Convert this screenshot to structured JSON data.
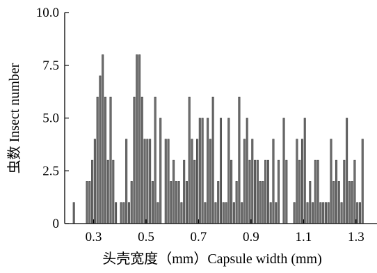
{
  "chart_data": {
    "type": "bar",
    "title": "",
    "xlabel": "头壳宽度（mm）Capsule width (mm)",
    "ylabel": "虫数 Insect number",
    "xlim": [
      0.19,
      1.38
    ],
    "ylim": [
      0,
      10
    ],
    "x_ticks": [
      "0.3",
      "0.5",
      "0.7",
      "0.9",
      "1.1",
      "1.3"
    ],
    "x_tick_values": [
      0.3,
      0.5,
      0.7,
      0.9,
      1.1,
      1.3
    ],
    "y_ticks": [
      "0",
      "2.5",
      "5.0",
      "7.5",
      "10.0"
    ],
    "y_tick_values": [
      0,
      2.5,
      5,
      7.5,
      10
    ],
    "bar_color": "#6e6e6e",
    "bar_width": 0.0065,
    "grid": false,
    "legend": "none",
    "x": [
      0.225,
      0.265,
      0.275,
      0.285,
      0.295,
      0.305,
      0.315,
      0.325,
      0.335,
      0.345,
      0.355,
      0.365,
      0.375,
      0.385,
      0.405,
      0.415,
      0.425,
      0.435,
      0.445,
      0.455,
      0.465,
      0.475,
      0.485,
      0.495,
      0.505,
      0.515,
      0.525,
      0.535,
      0.545,
      0.555,
      0.575,
      0.585,
      0.595,
      0.605,
      0.615,
      0.625,
      0.635,
      0.645,
      0.655,
      0.665,
      0.675,
      0.685,
      0.695,
      0.705,
      0.715,
      0.725,
      0.735,
      0.745,
      0.755,
      0.765,
      0.775,
      0.785,
      0.795,
      0.805,
      0.815,
      0.825,
      0.835,
      0.845,
      0.855,
      0.865,
      0.875,
      0.885,
      0.895,
      0.905,
      0.915,
      0.925,
      0.935,
      0.945,
      0.955,
      0.965,
      0.975,
      0.985,
      0.995,
      1.005,
      1.025,
      1.035,
      1.065,
      1.075,
      1.085,
      1.095,
      1.105,
      1.115,
      1.125,
      1.135,
      1.145,
      1.155,
      1.165,
      1.175,
      1.185,
      1.195,
      1.205,
      1.215,
      1.225,
      1.235,
      1.245,
      1.255,
      1.265,
      1.275,
      1.285,
      1.295,
      1.305,
      1.315,
      1.325
    ],
    "values": [
      1,
      0,
      2,
      2,
      3,
      4,
      6,
      7,
      8,
      6,
      3,
      6,
      3,
      1,
      1,
      1,
      4,
      1,
      2,
      6,
      8,
      8,
      6,
      4,
      4,
      4,
      2,
      6,
      1,
      5,
      4,
      4,
      2,
      3,
      2,
      2,
      1,
      3,
      2,
      6,
      4,
      3,
      4,
      5,
      5,
      1,
      5,
      4,
      6,
      1,
      2,
      5,
      1,
      1,
      5,
      3,
      1,
      2,
      6,
      1,
      4,
      5,
      3,
      4,
      3,
      3,
      2,
      2,
      3,
      3,
      1,
      4,
      1,
      3,
      5,
      3,
      1,
      4,
      3,
      4,
      5,
      1,
      2,
      1,
      3,
      3,
      1,
      1,
      1,
      1,
      4,
      2,
      3,
      2,
      1,
      3,
      5,
      2,
      2,
      3,
      1,
      1,
      4
    ]
  }
}
